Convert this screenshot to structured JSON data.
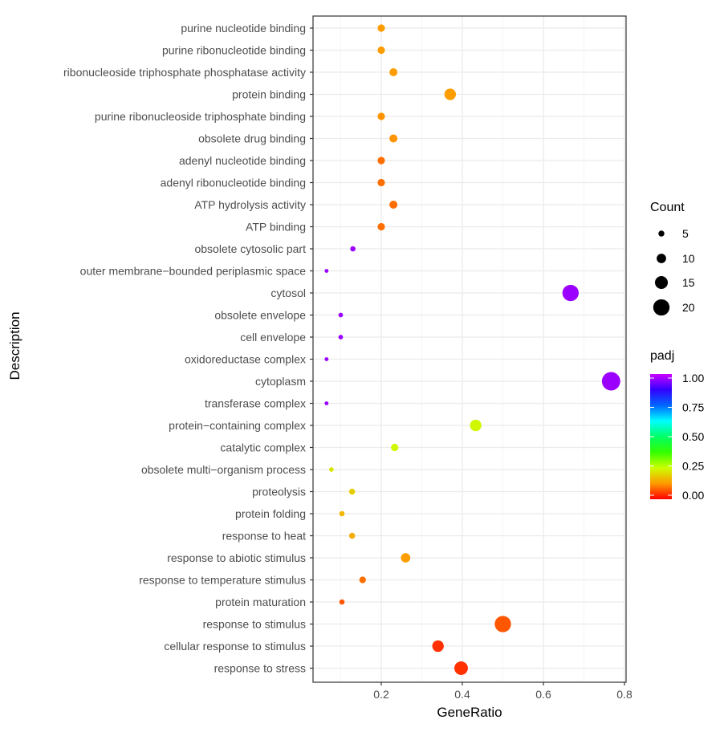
{
  "chart_data": {
    "type": "scatter",
    "xlabel": "GeneRatio",
    "ylabel": "Description",
    "xlim": [
      0.05,
      0.8
    ],
    "x_ticks": [
      "0.2",
      "0.4",
      "0.6",
      "0.8"
    ],
    "x_tick_values": [
      0.2,
      0.4,
      0.6,
      0.8
    ],
    "grid": true,
    "legend_position": "right",
    "categories": [
      "purine nucleotide binding",
      "purine ribonucleotide binding",
      "ribonucleoside triphosphate phosphatase activity",
      "protein binding",
      "purine ribonucleoside triphosphate binding",
      "obsolete drug binding",
      "adenyl nucleotide binding",
      "adenyl ribonucleotide binding",
      "ATP hydrolysis activity",
      "ATP binding",
      "obsolete cytosolic part",
      "outer membrane−bounded periplasmic space",
      "cytosol",
      "obsolete envelope",
      "cell envelope",
      "oxidoreductase complex",
      "cytoplasm",
      "transferase complex",
      "protein−containing complex",
      "catalytic complex",
      "obsolete multi−organism process",
      "proteolysis",
      "protein folding",
      "response to heat",
      "response to abiotic stimulus",
      "response to temperature stimulus",
      "protein maturation",
      "response to stimulus",
      "cellular response to stimulus",
      "response to stress"
    ],
    "points": [
      {
        "description": "purine nucleotide binding",
        "gene_ratio": 0.2,
        "count": 7,
        "padj": 0.13
      },
      {
        "description": "purine ribonucleotide binding",
        "gene_ratio": 0.2,
        "count": 7,
        "padj": 0.13
      },
      {
        "description": "ribonucleoside triphosphate phosphatase activity",
        "gene_ratio": 0.23,
        "count": 8,
        "padj": 0.13
      },
      {
        "description": "protein binding",
        "gene_ratio": 0.37,
        "count": 13,
        "padj": 0.13
      },
      {
        "description": "purine ribonucleoside triphosphate binding",
        "gene_ratio": 0.2,
        "count": 7,
        "padj": 0.12
      },
      {
        "description": "obsolete drug binding",
        "gene_ratio": 0.23,
        "count": 8,
        "padj": 0.12
      },
      {
        "description": "adenyl nucleotide binding",
        "gene_ratio": 0.2,
        "count": 7,
        "padj": 0.09
      },
      {
        "description": "adenyl ribonucleotide binding",
        "gene_ratio": 0.2,
        "count": 7,
        "padj": 0.09
      },
      {
        "description": "ATP hydrolysis activity",
        "gene_ratio": 0.23,
        "count": 8,
        "padj": 0.09
      },
      {
        "description": "ATP binding",
        "gene_ratio": 0.2,
        "count": 7,
        "padj": 0.09
      },
      {
        "description": "obsolete cytosolic part",
        "gene_ratio": 0.13,
        "count": 4,
        "padj": 0.96
      },
      {
        "description": "outer membrane−bounded periplasmic space",
        "gene_ratio": 0.065,
        "count": 2,
        "padj": 0.96
      },
      {
        "description": "cytosol",
        "gene_ratio": 0.667,
        "count": 20,
        "padj": 0.96
      },
      {
        "description": "obsolete envelope",
        "gene_ratio": 0.1,
        "count": 3,
        "padj": 0.96
      },
      {
        "description": "cell envelope",
        "gene_ratio": 0.1,
        "count": 3,
        "padj": 0.96
      },
      {
        "description": "oxidoreductase complex",
        "gene_ratio": 0.065,
        "count": 2,
        "padj": 0.96
      },
      {
        "description": "cytoplasm",
        "gene_ratio": 0.767,
        "count": 23,
        "padj": 0.96
      },
      {
        "description": "transferase complex",
        "gene_ratio": 0.065,
        "count": 2,
        "padj": 0.96
      },
      {
        "description": "protein−containing complex",
        "gene_ratio": 0.433,
        "count": 13,
        "padj": 0.24
      },
      {
        "description": "catalytic complex",
        "gene_ratio": 0.233,
        "count": 7,
        "padj": 0.24
      },
      {
        "description": "obsolete multi−organism process",
        "gene_ratio": 0.077,
        "count": 3,
        "padj": 0.22
      },
      {
        "description": "proteolysis",
        "gene_ratio": 0.128,
        "count": 5,
        "padj": 0.19
      },
      {
        "description": "protein folding",
        "gene_ratio": 0.103,
        "count": 4,
        "padj": 0.16
      },
      {
        "description": "response to heat",
        "gene_ratio": 0.128,
        "count": 5,
        "padj": 0.15
      },
      {
        "description": "response to abiotic stimulus",
        "gene_ratio": 0.26,
        "count": 10,
        "padj": 0.13
      },
      {
        "description": "response to temperature stimulus",
        "gene_ratio": 0.154,
        "count": 6,
        "padj": 0.09
      },
      {
        "description": "protein maturation",
        "gene_ratio": 0.103,
        "count": 4,
        "padj": 0.07
      },
      {
        "description": "response to stimulus",
        "gene_ratio": 0.5,
        "count": 20,
        "padj": 0.07
      },
      {
        "description": "cellular response to stimulus",
        "gene_ratio": 0.34,
        "count": 13,
        "padj": 0.04
      },
      {
        "description": "response to stress",
        "gene_ratio": 0.397,
        "count": 16,
        "padj": 0.04
      }
    ],
    "size_legend": {
      "title": "Count",
      "values": [
        5,
        10,
        15,
        20
      ],
      "labels": [
        "5",
        "10",
        "15",
        "20"
      ],
      "color": "#000000"
    },
    "color_legend": {
      "title": "padj",
      "ticks": [
        1.0,
        0.75,
        0.5,
        0.25,
        0.0
      ],
      "labels": [
        "1.00",
        "0.75",
        "0.50",
        "0.25",
        "0.00"
      ],
      "gradient_low_to_high": [
        "#ff0000",
        "#ff9900",
        "#ccff00",
        "#33ff00",
        "#00ff66",
        "#00ffff",
        "#0066ff",
        "#3300ff",
        "#cc00ff"
      ]
    },
    "colors": {
      "panel_border": "#333333",
      "grid_major": "#ebebeb",
      "grid_minor": "#f5f5f5"
    }
  }
}
